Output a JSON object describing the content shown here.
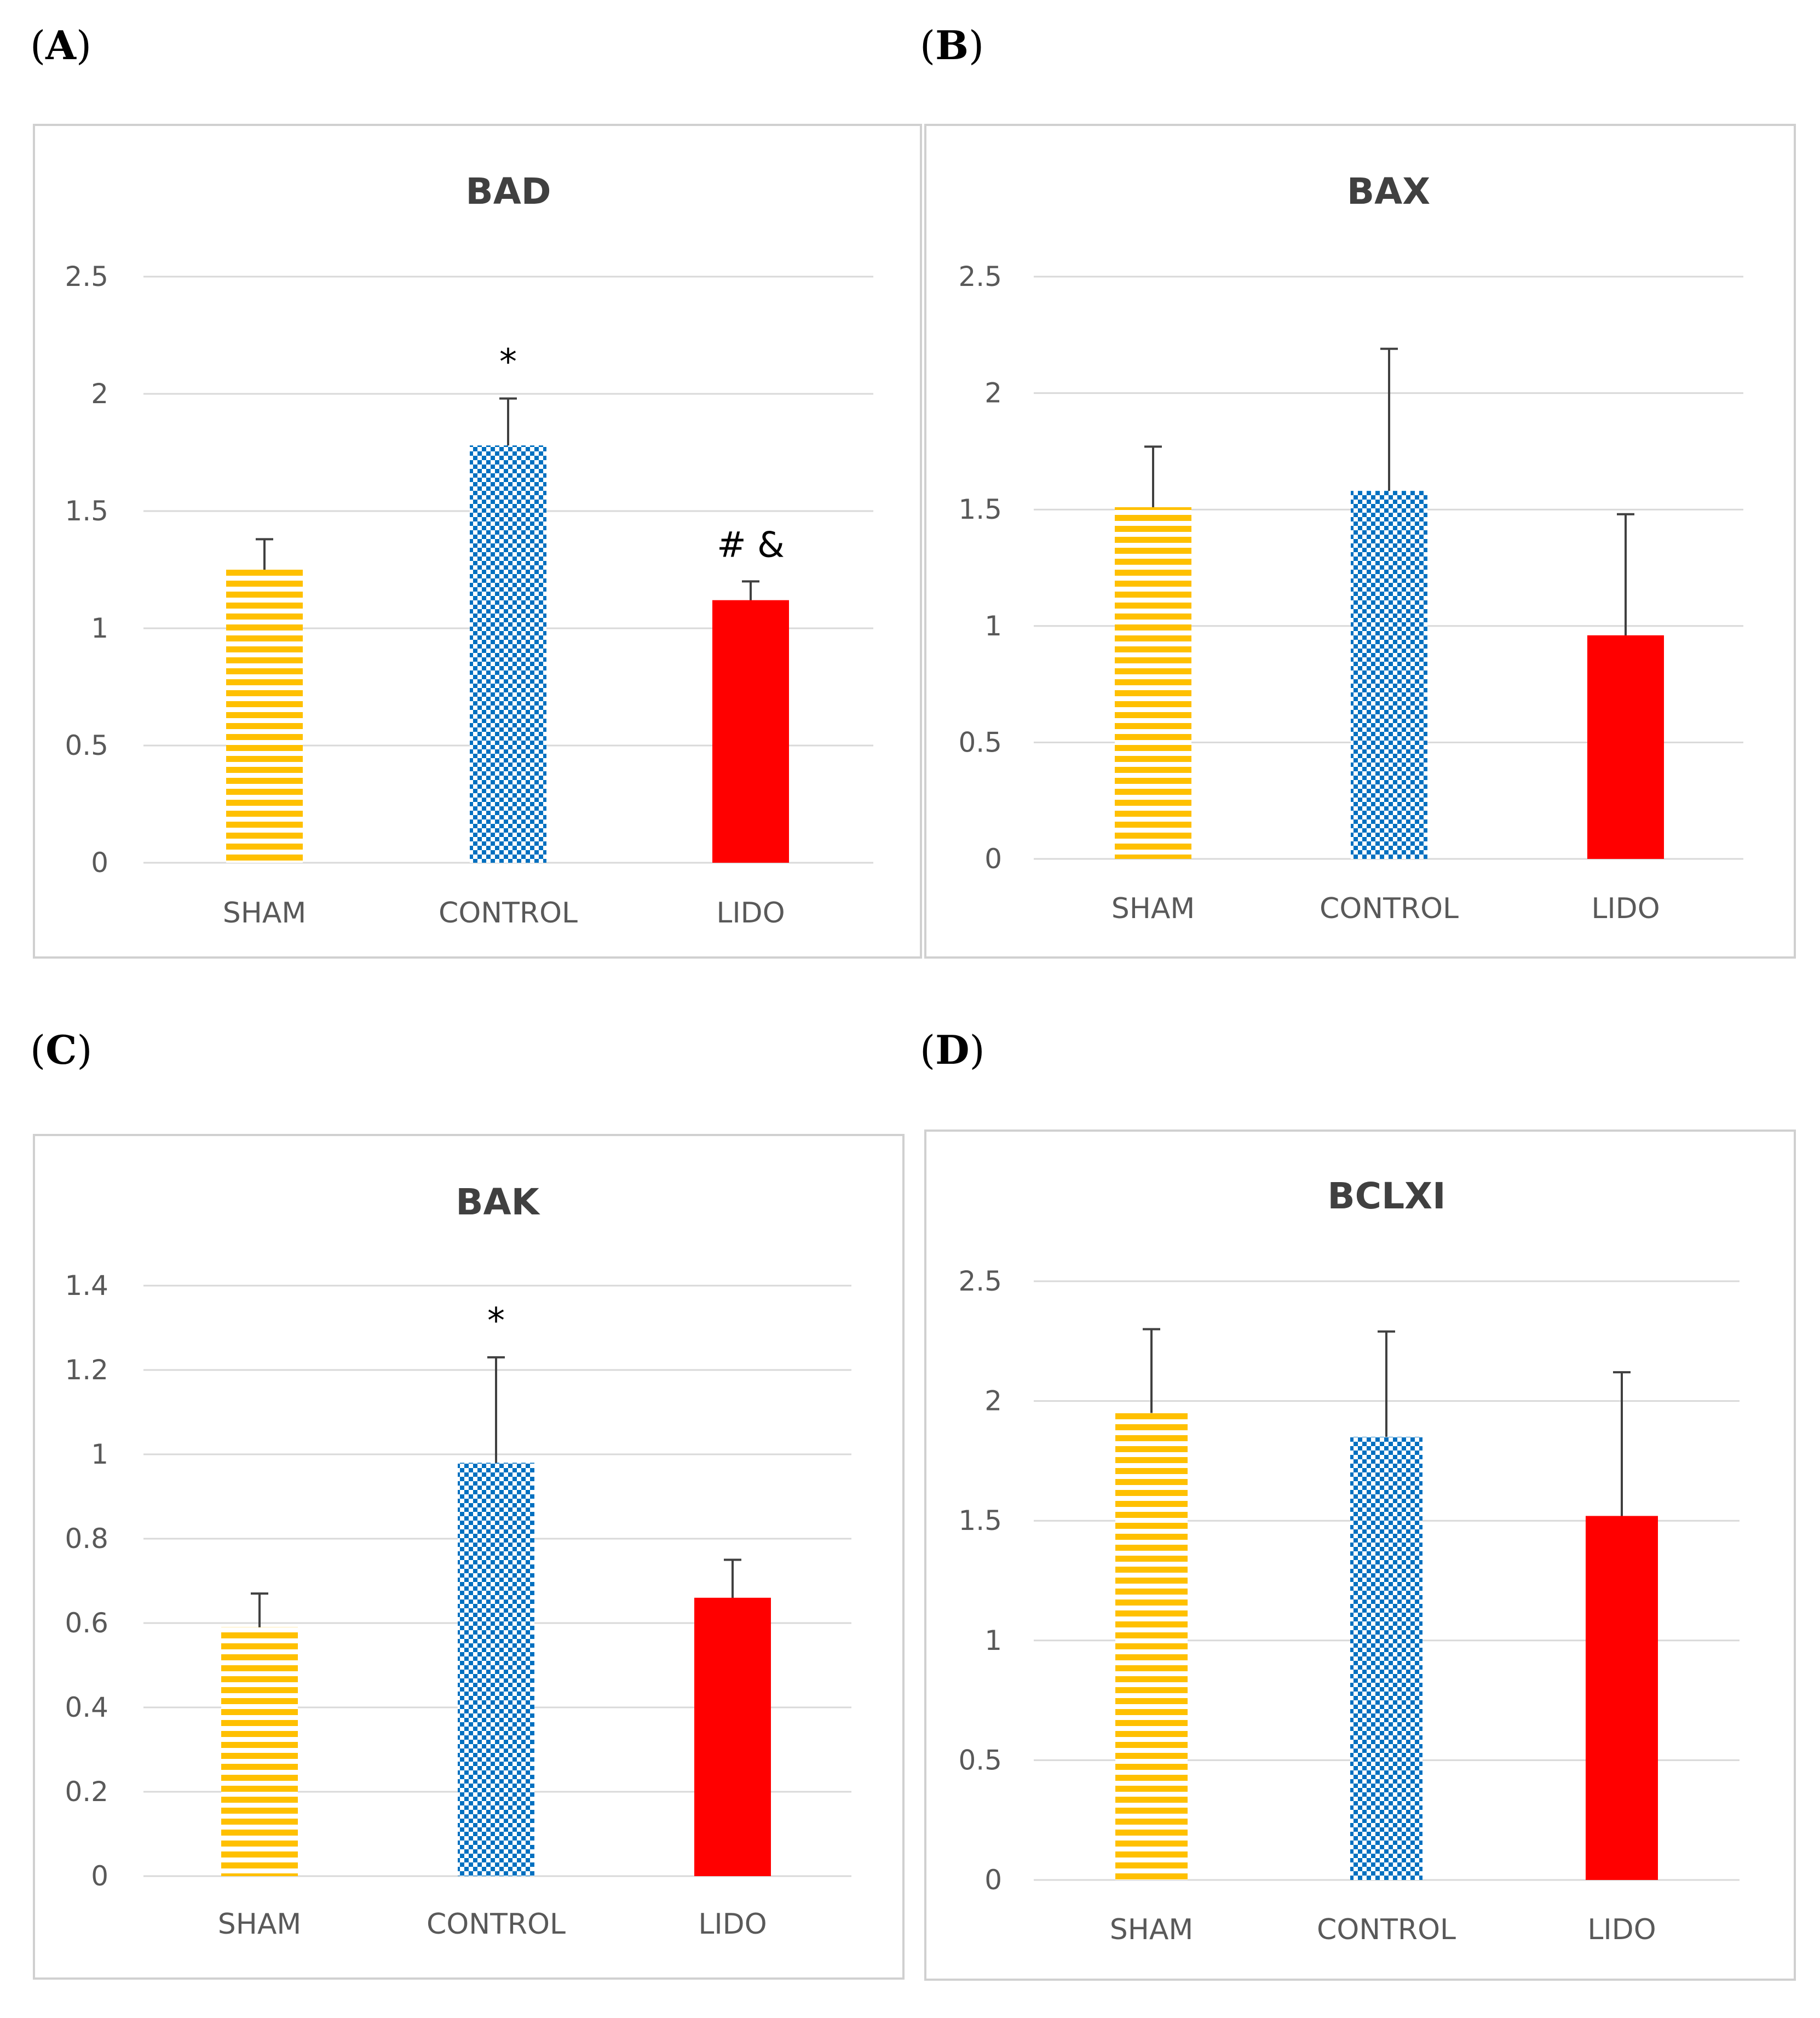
{
  "colors": {
    "sham": "#FFC000",
    "control": "#0070C0",
    "lido": "#FF0000"
  },
  "chart_data": [
    {
      "panel": "A",
      "type": "bar",
      "title": "BAD",
      "categories": [
        "SHAM",
        "CONTROL",
        "LIDO"
      ],
      "values": [
        1.25,
        1.78,
        1.12
      ],
      "errors": [
        0.13,
        0.2,
        0.08
      ],
      "annotations": [
        "",
        "*",
        "# &"
      ],
      "ylim": [
        0,
        2.5
      ],
      "yticks": [
        "0",
        "0.5",
        "1",
        "1.5",
        "2",
        "2.5"
      ],
      "ytick_values": [
        0,
        0.5,
        1,
        1.5,
        2,
        2.5
      ]
    },
    {
      "panel": "B",
      "type": "bar",
      "title": "BAX",
      "categories": [
        "SHAM",
        "CONTROL",
        "LIDO"
      ],
      "values": [
        1.51,
        1.58,
        0.96
      ],
      "errors": [
        0.26,
        0.61,
        0.52
      ],
      "annotations": [
        "",
        "",
        ""
      ],
      "ylim": [
        0,
        2.5
      ],
      "yticks": [
        "0",
        "0.5",
        "1",
        "1.5",
        "2",
        "2.5"
      ],
      "ytick_values": [
        0,
        0.5,
        1,
        1.5,
        2,
        2.5
      ]
    },
    {
      "panel": "C",
      "type": "bar",
      "title": "BAK",
      "categories": [
        "SHAM",
        "CONTROL",
        "LIDO"
      ],
      "values": [
        0.59,
        0.98,
        0.66
      ],
      "errors": [
        0.08,
        0.25,
        0.09
      ],
      "annotations": [
        "",
        "*",
        ""
      ],
      "ylim": [
        0,
        1.4
      ],
      "yticks": [
        "0",
        "0.2",
        "0.4",
        "0.6",
        "0.8",
        "1",
        "1.2",
        "1.4"
      ],
      "ytick_values": [
        0,
        0.2,
        0.4,
        0.6,
        0.8,
        1,
        1.2,
        1.4
      ]
    },
    {
      "panel": "D",
      "type": "bar",
      "title": "BCLXI",
      "categories": [
        "SHAM",
        "CONTROL",
        "LIDO"
      ],
      "values": [
        1.95,
        1.85,
        1.52
      ],
      "errors": [
        0.35,
        0.44,
        0.6
      ],
      "annotations": [
        "",
        "",
        ""
      ],
      "ylim": [
        0,
        2.5
      ],
      "yticks": [
        "0",
        "0.5",
        "1",
        "1.5",
        "2",
        "2.5"
      ],
      "ytick_values": [
        0,
        0.5,
        1,
        1.5,
        2,
        2.5
      ]
    }
  ],
  "panel_labels": [
    {
      "open": "(",
      "letter": "A",
      "close": ")"
    },
    {
      "open": "(",
      "letter": "B",
      "close": ")"
    },
    {
      "open": "(",
      "letter": "C",
      "close": ")"
    },
    {
      "open": "(",
      "letter": "D",
      "close": ")"
    }
  ]
}
